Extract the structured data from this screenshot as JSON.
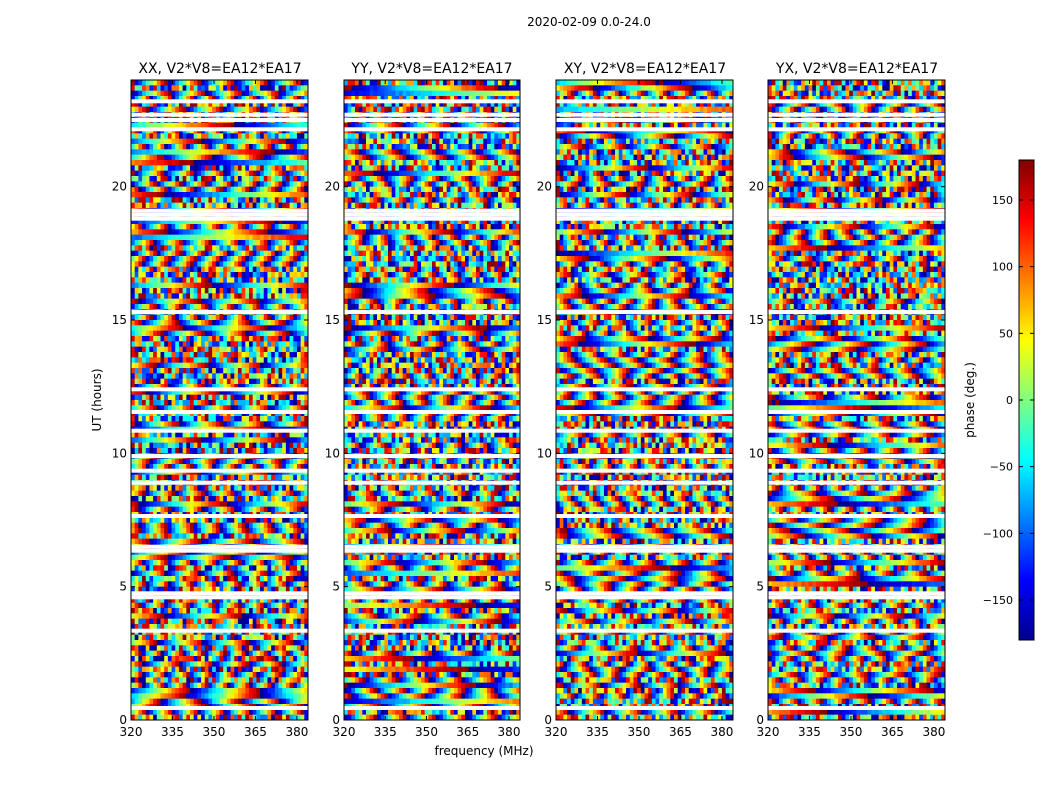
{
  "chart_data": {
    "type": "heatmap",
    "suptitle": "2020-02-09 0.0-24.0",
    "panels": [
      {
        "title": "XX, V2*V8=EA12*EA17",
        "polarization": "XX"
      },
      {
        "title": "YY, V2*V8=EA12*EA17",
        "polarization": "YY"
      },
      {
        "title": "XY, V2*V8=EA12*EA17",
        "polarization": "XY"
      },
      {
        "title": "YX, V2*V8=EA12*EA17",
        "polarization": "YX"
      }
    ],
    "xlabel": "frequency (MHz)",
    "ylabel": "UT (hours)",
    "xlim": [
      320,
      384
    ],
    "ylim": [
      0,
      24
    ],
    "xticks": [
      320,
      335,
      350,
      365,
      380
    ],
    "yticks": [
      0,
      5,
      10,
      15,
      20
    ],
    "value": "phase",
    "colorbar": {
      "label": "phase (deg.)",
      "range": [
        -180,
        180
      ],
      "ticks": [
        -150,
        -100,
        -50,
        0,
        50,
        100,
        150
      ],
      "colormap": "jet"
    },
    "flagged_ut_hours": [
      0.45,
      3.35,
      4.6,
      4.75,
      6.35,
      6.5,
      7.65,
      8.9,
      9.35,
      9.9,
      10.85,
      11.55,
      12.4,
      15.3,
      18.8,
      18.95,
      19.1,
      22.15,
      22.5,
      22.7,
      23.2
    ]
  }
}
